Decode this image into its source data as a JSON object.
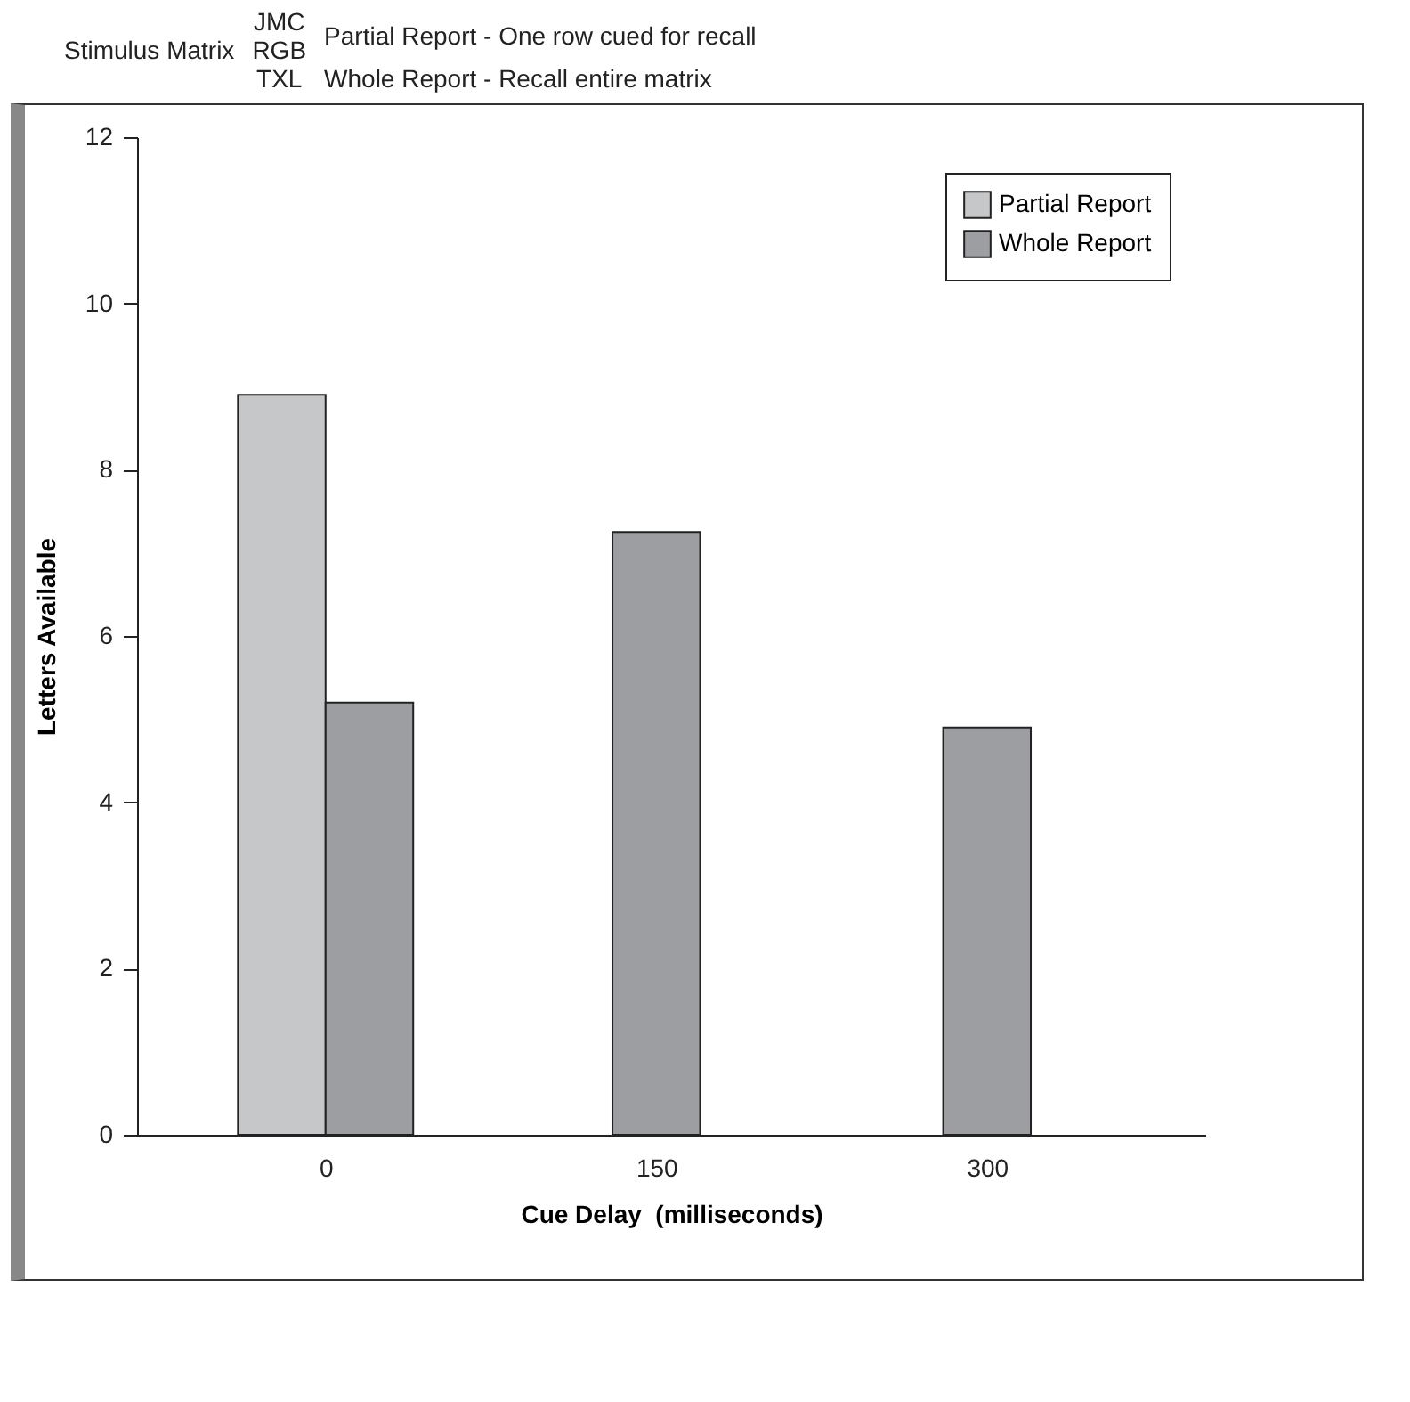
{
  "chart_data": {
    "type": "bar",
    "xlabel": "Cue Delay  (milliseconds)",
    "ylabel": "Letters Available",
    "categories": [
      "0",
      "150",
      "300"
    ],
    "series": [
      {
        "name": "Partial Report",
        "color": "#c6c7c9",
        "values": [
          8.9,
          null,
          null
        ]
      },
      {
        "name": "Whole Report",
        "color": "#9d9ea2",
        "values": [
          5.2,
          7.25,
          4.9
        ]
      }
    ],
    "ylim": [
      0,
      12
    ],
    "yticks": [
      0,
      2,
      4,
      6,
      8,
      10,
      12
    ],
    "grid": false,
    "legend": "top right",
    "annotations": [
      "Stimulus Matrix",
      "JMC",
      "RGB",
      "TXL",
      "Partial Report - One row cued for recall",
      "Whole Report - Recall entire matrix"
    ]
  }
}
